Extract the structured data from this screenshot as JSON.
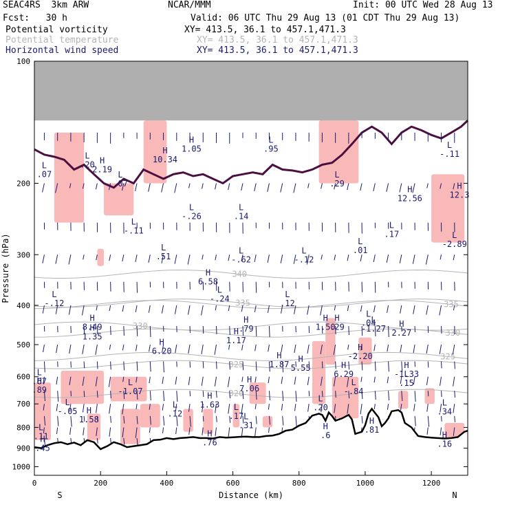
{
  "header": {
    "model": "SEAC4RS  3km ARW",
    "center": "NCAR/MMM",
    "init": "Init: 00 UTC Wed 28 Aug 13",
    "fcst": "Fcst:   30 h",
    "valid": "Valid: 06 UTC Thu 29 Aug 13 (01 CDT Thu 29 Aug 13)",
    "fields": [
      {
        "name": "Potential vorticity",
        "xy": "XY= 413.5, 36.1 to 457.1,471.3",
        "color": "#000000"
      },
      {
        "name": "Potential temperature",
        "xy": "XY= 413.5, 36.1 to 457.1,471.3",
        "color": "#b4b4b4"
      },
      {
        "name": "Horizontal wind speed",
        "xy": "XY= 413.5, 36.1 to 457.1,471.3",
        "color": "#1a1a6e"
      }
    ]
  },
  "chart_data": {
    "type": "cross-section",
    "ylabel": "Pressure (hPa)",
    "xlabel": "Distance (km)",
    "x_end_labels": {
      "left": "S",
      "right": "N"
    },
    "xlim": [
      0,
      1310
    ],
    "ylim": [
      1050,
      100
    ],
    "y_scale": "log",
    "x_ticks": [
      0,
      200,
      400,
      600,
      800,
      1000,
      1200
    ],
    "y_ticks": [
      100,
      200,
      300,
      400,
      500,
      600,
      700,
      800,
      900,
      1000
    ],
    "colors": {
      "pv": "#f9b9b9",
      "theta": "#b4b4b4",
      "wind": "#1a1a6e",
      "terrain": "#000000",
      "strat": "#4a1040"
    },
    "theta_contours": [
      {
        "label": "340",
        "p": 335,
        "x": 620
      },
      {
        "label": "335",
        "p": 395,
        "x": 630
      },
      {
        "label": "335",
        "p": 398,
        "x": 1260
      },
      {
        "label": "330",
        "p": 450,
        "x": 320
      },
      {
        "label": "330",
        "p": 468,
        "x": 1265
      },
      {
        "label": "325",
        "p": 560,
        "x": 610
      },
      {
        "label": "325",
        "p": 535,
        "x": 1250
      },
      {
        "label": "320",
        "p": 660,
        "x": 610
      }
    ],
    "extrema": [
      {
        "type": "L",
        "value": ".20",
        "x": 160,
        "p": 175
      },
      {
        "type": "L",
        "value": ".07",
        "x": 30,
        "p": 185
      },
      {
        "type": "H",
        "value": "2.19",
        "x": 205,
        "p": 180
      },
      {
        "type": "L",
        "value": ".07",
        "x": 260,
        "p": 195
      },
      {
        "type": "H",
        "value": "10.34",
        "x": 395,
        "p": 170
      },
      {
        "type": "H",
        "value": "1.05",
        "x": 475,
        "p": 160
      },
      {
        "type": "L",
        "value": ".95",
        "x": 715,
        "p": 160
      },
      {
        "type": "L",
        "value": ".29",
        "x": 915,
        "p": 195
      },
      {
        "type": "L",
        "value": "-.11",
        "x": 1255,
        "p": 165
      },
      {
        "type": "H",
        "value": "12.56",
        "x": 1135,
        "p": 212
      },
      {
        "type": "H",
        "value": "12.3",
        "x": 1285,
        "p": 208
      },
      {
        "type": "L",
        "value": "-.26",
        "x": 475,
        "p": 235
      },
      {
        "type": "L",
        "value": ".14",
        "x": 625,
        "p": 235
      },
      {
        "type": "L",
        "value": "-.11",
        "x": 300,
        "p": 255
      },
      {
        "type": "L",
        "value": ".17",
        "x": 1080,
        "p": 260
      },
      {
        "type": "L",
        "value": "-2.89",
        "x": 1270,
        "p": 275
      },
      {
        "type": "L",
        "value": ".51",
        "x": 390,
        "p": 295
      },
      {
        "type": "L",
        "value": ".01",
        "x": 985,
        "p": 285
      },
      {
        "type": "L",
        "value": "-.62",
        "x": 625,
        "p": 300
      },
      {
        "type": "L",
        "value": "-.12",
        "x": 815,
        "p": 300
      },
      {
        "type": "H",
        "value": "6.58",
        "x": 525,
        "p": 340
      },
      {
        "type": "L",
        "value": "-.24",
        "x": 560,
        "p": 375
      },
      {
        "type": "L",
        "value": "-.12",
        "x": 60,
        "p": 385
      },
      {
        "type": "L",
        "value": ".12",
        "x": 765,
        "p": 385
      },
      {
        "type": "H",
        "value": "8.49",
        "x": 175,
        "p": 440
      },
      {
        "type": "H",
        "value": "1.35",
        "x": 175,
        "p": 465
      },
      {
        "type": "H",
        "value": ".79",
        "x": 640,
        "p": 445
      },
      {
        "type": "L",
        "value": ".04",
        "x": 1010,
        "p": 430
      },
      {
        "type": "L",
        "value": "-1.27",
        "x": 1025,
        "p": 445
      },
      {
        "type": "H",
        "value": "1.50",
        "x": 880,
        "p": 440
      },
      {
        "type": "H",
        "value": ".29",
        "x": 915,
        "p": 440
      },
      {
        "type": "H",
        "value": "2.27",
        "x": 1110,
        "p": 455
      },
      {
        "type": "H",
        "value": "1.17",
        "x": 610,
        "p": 475
      },
      {
        "type": "H",
        "value": "6.20",
        "x": 385,
        "p": 505
      },
      {
        "type": "H",
        "value": "-2.20",
        "x": 985,
        "p": 520
      },
      {
        "type": "H",
        "value": "1.87",
        "x": 740,
        "p": 545
      },
      {
        "type": "H",
        "value": "5.55",
        "x": 805,
        "p": 555
      },
      {
        "type": "H",
        "value": "6.29",
        "x": 935,
        "p": 575
      },
      {
        "type": "H",
        "value": "-1.33",
        "x": 1125,
        "p": 575
      },
      {
        "type": "L",
        "value": ".67",
        "x": 15,
        "p": 600
      },
      {
        "type": "L",
        "value": ".15",
        "x": 1125,
        "p": 605
      },
      {
        "type": "L",
        "value": "-1.07",
        "x": 290,
        "p": 635
      },
      {
        "type": "H",
        "value": "7.06",
        "x": 650,
        "p": 625
      },
      {
        "type": "L",
        "value": "-.84",
        "x": 965,
        "p": 635
      },
      {
        "type": "H",
        "value": ".89",
        "x": 15,
        "p": 630
      },
      {
        "type": "H",
        "value": "1.63",
        "x": 530,
        "p": 685
      },
      {
        "type": "L",
        "value": "-.05",
        "x": 100,
        "p": 710
      },
      {
        "type": "L",
        "value": ".20",
        "x": 865,
        "p": 695
      },
      {
        "type": "L",
        "value": ".34",
        "x": 1240,
        "p": 712
      },
      {
        "type": "L",
        "value": ".12",
        "x": 425,
        "p": 720
      },
      {
        "type": "L",
        "value": ".17",
        "x": 610,
        "p": 730
      },
      {
        "type": "H",
        "value": "1.58",
        "x": 165,
        "p": 745
      },
      {
        "type": "L",
        "value": ".31",
        "x": 640,
        "p": 770
      },
      {
        "type": "H",
        "value": ".81",
        "x": 1020,
        "p": 790
      },
      {
        "type": "L",
        "value": ".11",
        "x": 20,
        "p": 820
      },
      {
        "type": "H",
        "value": ".76",
        "x": 530,
        "p": 848
      },
      {
        "type": "H",
        "value": ".6",
        "x": 880,
        "p": 815
      },
      {
        "type": "H",
        "value": ".16",
        "x": 1240,
        "p": 855
      },
      {
        "type": "H",
        "value": ".45",
        "x": 25,
        "p": 875
      }
    ],
    "terrain": {
      "x": [
        0,
        20,
        40,
        60,
        80,
        100,
        120,
        140,
        160,
        180,
        200,
        220,
        240,
        260,
        280,
        300,
        320,
        340,
        360,
        380,
        400,
        420,
        440,
        460,
        480,
        500,
        520,
        540,
        560,
        580,
        600,
        620,
        640,
        660,
        680,
        700,
        720,
        740,
        760,
        780,
        800,
        820,
        840,
        860,
        870,
        880,
        890,
        900,
        910,
        930,
        950,
        960,
        970,
        990,
        1000,
        1010,
        1020,
        1040,
        1050,
        1060,
        1070,
        1080,
        1100,
        1110,
        1120,
        1140,
        1160,
        1180,
        1200,
        1220,
        1240,
        1260,
        1280,
        1300,
        1310
      ],
      "p": [
        895,
        900,
        885,
        875,
        870,
        880,
        872,
        885,
        860,
        870,
        905,
        890,
        870,
        880,
        895,
        890,
        885,
        880,
        860,
        858,
        850,
        855,
        850,
        848,
        845,
        850,
        850,
        852,
        845,
        848,
        846,
        844,
        843,
        845,
        845,
        840,
        838,
        830,
        815,
        810,
        792,
        780,
        748,
        740,
        745,
        770,
        735,
        750,
        770,
        760,
        745,
        765,
        830,
        820,
        790,
        740,
        720,
        755,
        795,
        780,
        760,
        730,
        725,
        735,
        780,
        800,
        840,
        845,
        848,
        850,
        852,
        850,
        845,
        820,
        815
      ]
    },
    "tropopause": {
      "x": [
        0,
        30,
        60,
        90,
        120,
        150,
        180,
        210,
        240,
        270,
        300,
        330,
        360,
        390,
        420,
        450,
        480,
        510,
        540,
        570,
        600,
        630,
        660,
        690,
        720,
        750,
        780,
        810,
        840,
        870,
        900,
        930,
        960,
        990,
        1020,
        1050,
        1080,
        1110,
        1140,
        1170,
        1200,
        1230,
        1260,
        1290,
        1310
      ],
      "p": [
        165,
        170,
        172,
        175,
        185,
        180,
        190,
        200,
        205,
        195,
        200,
        185,
        190,
        195,
        190,
        188,
        192,
        190,
        195,
        200,
        192,
        190,
        188,
        190,
        180,
        185,
        186,
        188,
        185,
        180,
        178,
        170,
        160,
        150,
        145,
        150,
        160,
        150,
        145,
        148,
        152,
        155,
        150,
        145,
        140
      ]
    },
    "pv_shading": [
      {
        "x": [
          60,
          150
        ],
        "p": [
          150,
          250
        ]
      },
      {
        "x": [
          210,
          300
        ],
        "p": [
          200,
          240
        ]
      },
      {
        "x": [
          330,
          400
        ],
        "p": [
          140,
          200
        ]
      },
      {
        "x": [
          860,
          980
        ],
        "p": [
          140,
          200
        ]
      },
      {
        "x": [
          1200,
          1300
        ],
        "p": [
          190,
          280
        ]
      },
      {
        "x": [
          190,
          210
        ],
        "p": [
          290,
          320
        ]
      },
      {
        "x": [
          0,
          50
        ],
        "p": [
          620,
          860
        ]
      },
      {
        "x": [
          80,
          210
        ],
        "p": [
          580,
          700
        ]
      },
      {
        "x": [
          160,
          200
        ],
        "p": [
          740,
          860
        ]
      },
      {
        "x": [
          230,
          340
        ],
        "p": [
          600,
          690
        ]
      },
      {
        "x": [
          260,
          320
        ],
        "p": [
          720,
          880
        ]
      },
      {
        "x": [
          320,
          380
        ],
        "p": [
          700,
          800
        ]
      },
      {
        "x": [
          450,
          480
        ],
        "p": [
          720,
          820
        ]
      },
      {
        "x": [
          510,
          540
        ],
        "p": [
          720,
          830
        ]
      },
      {
        "x": [
          600,
          620
        ],
        "p": [
          700,
          800
        ]
      },
      {
        "x": [
          650,
          700
        ],
        "p": [
          620,
          700
        ]
      },
      {
        "x": [
          690,
          720
        ],
        "p": [
          750,
          800
        ]
      },
      {
        "x": [
          840,
          880
        ],
        "p": [
          490,
          700
        ]
      },
      {
        "x": [
          880,
          910
        ],
        "p": [
          430,
          560
        ]
      },
      {
        "x": [
          900,
          980
        ],
        "p": [
          600,
          760
        ]
      },
      {
        "x": [
          980,
          1020
        ],
        "p": [
          480,
          560
        ]
      },
      {
        "x": [
          1100,
          1130
        ],
        "p": [
          650,
          720
        ]
      },
      {
        "x": [
          1180,
          1210
        ],
        "p": [
          640,
          700
        ]
      },
      {
        "x": [
          1240,
          1300
        ],
        "p": [
          780,
          850
        ]
      }
    ]
  }
}
